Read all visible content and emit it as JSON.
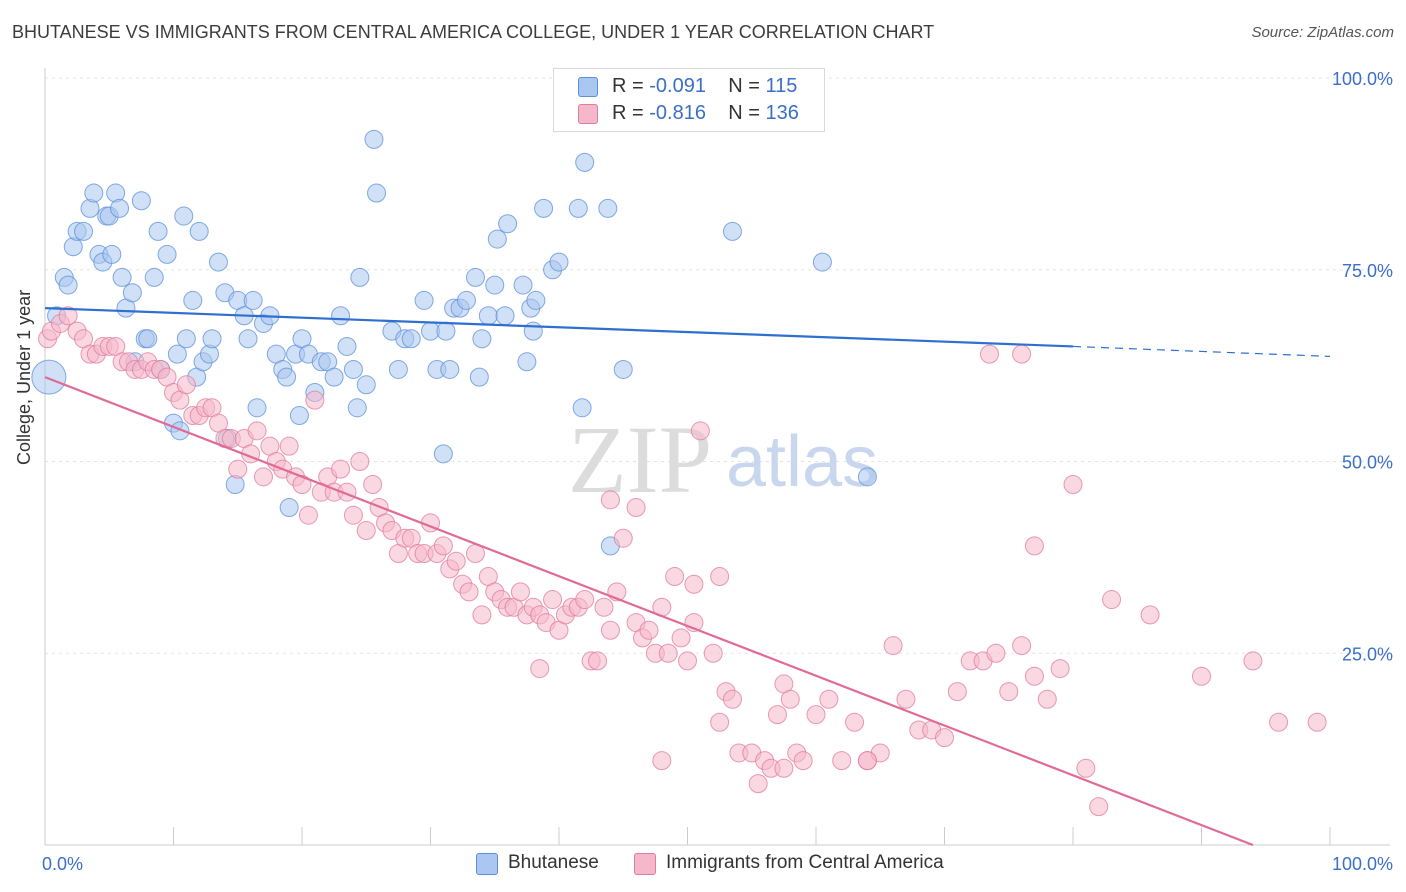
{
  "title": "BHUTANESE VS IMMIGRANTS FROM CENTRAL AMERICA COLLEGE, UNDER 1 YEAR CORRELATION CHART",
  "source": "Source: ZipAtlas.com",
  "watermark": "ZIPatlas",
  "legend": {
    "rows": [
      {
        "r_label": "R =",
        "r_value": "-0.091",
        "n_label": "N =",
        "n_value": "115",
        "color": "#a9c7f0"
      },
      {
        "r_label": "R =",
        "r_value": "-0.816",
        "n_label": "N =",
        "n_value": "136",
        "color": "#f5b8cb"
      }
    ]
  },
  "bottom_legend": [
    {
      "label": "Bhutanese",
      "color": "#a9c7f0"
    },
    {
      "label": "Immigrants from Central America",
      "color": "#f5b8cb"
    }
  ],
  "chart_data": {
    "type": "scatter",
    "title": "BHUTANESE VS IMMIGRANTS FROM CENTRAL AMERICA COLLEGE, UNDER 1 YEAR CORRELATION CHART",
    "xlabel": "",
    "ylabel": "College, Under 1 year",
    "xlim": [
      0,
      100
    ],
    "ylim": [
      0,
      100
    ],
    "x_tick_labels": [
      "0.0%",
      "100.0%"
    ],
    "y_tick_labels": [
      "25.0%",
      "50.0%",
      "75.0%",
      "100.0%"
    ],
    "y_ticks": [
      25,
      50,
      75,
      100
    ],
    "grid": true,
    "legend_position": "top-center",
    "series": [
      {
        "name": "Bhutanese",
        "color": "#5b8fd9",
        "fill": "#a9c7f0",
        "trend": {
          "x0": 0,
          "y0": 70.0,
          "x1": 80,
          "y1": 65.0,
          "dashed_to_x": 100,
          "dashed_to_y": 63.7
        },
        "points": [
          [
            0.3,
            61
          ],
          [
            0.9,
            69
          ],
          [
            1.5,
            74
          ],
          [
            1.8,
            73
          ],
          [
            2.2,
            78
          ],
          [
            2.5,
            80
          ],
          [
            3.0,
            80
          ],
          [
            3.5,
            83
          ],
          [
            3.8,
            85
          ],
          [
            4.2,
            77
          ],
          [
            4.5,
            76
          ],
          [
            4.8,
            82
          ],
          [
            5.0,
            82
          ],
          [
            5.2,
            77
          ],
          [
            5.5,
            85
          ],
          [
            5.8,
            83
          ],
          [
            6.0,
            74
          ],
          [
            6.3,
            70
          ],
          [
            6.8,
            72
          ],
          [
            7.0,
            63
          ],
          [
            7.5,
            84
          ],
          [
            7.8,
            66
          ],
          [
            8.0,
            66
          ],
          [
            8.5,
            74
          ],
          [
            8.8,
            80
          ],
          [
            9.0,
            62
          ],
          [
            9.5,
            77
          ],
          [
            10.0,
            55
          ],
          [
            10.3,
            64
          ],
          [
            10.5,
            54
          ],
          [
            10.8,
            82
          ],
          [
            11.0,
            66
          ],
          [
            11.5,
            71
          ],
          [
            11.8,
            61
          ],
          [
            12.0,
            80
          ],
          [
            12.3,
            63
          ],
          [
            12.8,
            64
          ],
          [
            13.0,
            66
          ],
          [
            13.5,
            76
          ],
          [
            14.0,
            72
          ],
          [
            14.2,
            53
          ],
          [
            14.8,
            47
          ],
          [
            15.0,
            71
          ],
          [
            15.5,
            69
          ],
          [
            15.8,
            66
          ],
          [
            16.2,
            71
          ],
          [
            16.5,
            57
          ],
          [
            17.0,
            68
          ],
          [
            17.5,
            69
          ],
          [
            18.0,
            64
          ],
          [
            18.5,
            62
          ],
          [
            18.8,
            61
          ],
          [
            19.0,
            44
          ],
          [
            19.5,
            64
          ],
          [
            19.8,
            56
          ],
          [
            20.0,
            66
          ],
          [
            20.5,
            64
          ],
          [
            21.0,
            59
          ],
          [
            21.5,
            63
          ],
          [
            22.0,
            63
          ],
          [
            22.5,
            61
          ],
          [
            23.0,
            69
          ],
          [
            23.5,
            65
          ],
          [
            24.0,
            62
          ],
          [
            24.3,
            57
          ],
          [
            24.5,
            74
          ],
          [
            25.0,
            60
          ],
          [
            25.8,
            85
          ],
          [
            25.6,
            92
          ],
          [
            27.0,
            67
          ],
          [
            27.5,
            62
          ],
          [
            28.0,
            66
          ],
          [
            28.5,
            66
          ],
          [
            29.5,
            71
          ],
          [
            30.0,
            67
          ],
          [
            30.5,
            62
          ],
          [
            31.2,
            67
          ],
          [
            31.5,
            62
          ],
          [
            31.8,
            70
          ],
          [
            32.3,
            70
          ],
          [
            32.8,
            71
          ],
          [
            33.5,
            74
          ],
          [
            33.8,
            61
          ],
          [
            34.0,
            66
          ],
          [
            34.5,
            69
          ],
          [
            35.2,
            79
          ],
          [
            35.0,
            73
          ],
          [
            35.8,
            69
          ],
          [
            36.0,
            81
          ],
          [
            37.2,
            73
          ],
          [
            37.5,
            63
          ],
          [
            37.8,
            70
          ],
          [
            38.0,
            67
          ],
          [
            38.2,
            71
          ],
          [
            38.8,
            83
          ],
          [
            39.5,
            75
          ],
          [
            40.0,
            76
          ],
          [
            41.5,
            83
          ],
          [
            41.8,
            57
          ],
          [
            42.0,
            89
          ],
          [
            43.8,
            83
          ],
          [
            44.0,
            39
          ],
          [
            45.0,
            62
          ],
          [
            53.5,
            80
          ],
          [
            60.5,
            76
          ],
          [
            64.0,
            48
          ],
          [
            31.0,
            51
          ]
        ]
      },
      {
        "name": "Immigrants from Central America",
        "color": "#e07a9e",
        "fill": "#f5b8cb",
        "trend": {
          "x0": 0,
          "y0": 61.0,
          "x1": 94,
          "y1": 0
        },
        "points": [
          [
            0.2,
            66
          ],
          [
            0.5,
            67
          ],
          [
            1.2,
            68
          ],
          [
            1.8,
            69
          ],
          [
            2.5,
            67
          ],
          [
            3.0,
            66
          ],
          [
            3.5,
            64
          ],
          [
            4.0,
            64
          ],
          [
            4.5,
            65
          ],
          [
            5.0,
            65
          ],
          [
            5.5,
            65
          ],
          [
            6.0,
            63
          ],
          [
            6.5,
            63
          ],
          [
            7.0,
            62
          ],
          [
            7.5,
            62
          ],
          [
            8.0,
            63
          ],
          [
            8.5,
            62
          ],
          [
            9.0,
            62
          ],
          [
            9.5,
            61
          ],
          [
            10.0,
            59
          ],
          [
            10.5,
            58
          ],
          [
            11.0,
            60
          ],
          [
            11.5,
            56
          ],
          [
            12.0,
            56
          ],
          [
            12.5,
            57
          ],
          [
            13.0,
            57
          ],
          [
            13.5,
            55
          ],
          [
            14.0,
            53
          ],
          [
            14.5,
            53
          ],
          [
            15.0,
            49
          ],
          [
            15.5,
            53
          ],
          [
            16.0,
            51
          ],
          [
            16.5,
            54
          ],
          [
            17.0,
            48
          ],
          [
            17.5,
            52
          ],
          [
            18.0,
            50
          ],
          [
            18.5,
            49
          ],
          [
            19.0,
            52
          ],
          [
            19.5,
            48
          ],
          [
            20.0,
            47
          ],
          [
            20.5,
            43
          ],
          [
            21.0,
            58
          ],
          [
            21.5,
            46
          ],
          [
            22.0,
            48
          ],
          [
            22.5,
            46
          ],
          [
            23.0,
            49
          ],
          [
            23.5,
            46
          ],
          [
            24.0,
            43
          ],
          [
            24.5,
            50
          ],
          [
            25.0,
            41
          ],
          [
            25.5,
            47
          ],
          [
            26.0,
            44
          ],
          [
            26.5,
            42
          ],
          [
            27.0,
            41
          ],
          [
            27.5,
            38
          ],
          [
            28.0,
            40
          ],
          [
            28.5,
            40
          ],
          [
            29.0,
            38
          ],
          [
            29.5,
            38
          ],
          [
            30.0,
            42
          ],
          [
            30.5,
            38
          ],
          [
            31.0,
            39
          ],
          [
            31.5,
            36
          ],
          [
            32.0,
            37
          ],
          [
            32.5,
            34
          ],
          [
            33.0,
            33
          ],
          [
            33.5,
            38
          ],
          [
            34.0,
            30
          ],
          [
            34.5,
            35
          ],
          [
            35.0,
            33
          ],
          [
            35.5,
            32
          ],
          [
            36.0,
            31
          ],
          [
            36.5,
            31
          ],
          [
            37.0,
            33
          ],
          [
            37.5,
            30
          ],
          [
            38.0,
            31
          ],
          [
            38.5,
            30
          ],
          [
            39.0,
            29
          ],
          [
            39.5,
            32
          ],
          [
            40.0,
            28
          ],
          [
            40.5,
            30
          ],
          [
            41.0,
            31
          ],
          [
            41.5,
            31
          ],
          [
            42.0,
            32
          ],
          [
            42.5,
            24
          ],
          [
            43.0,
            24
          ],
          [
            43.5,
            31
          ],
          [
            44.0,
            28
          ],
          [
            44.5,
            33
          ],
          [
            45.0,
            40
          ],
          [
            46.0,
            29
          ],
          [
            46.5,
            27
          ],
          [
            47.0,
            28
          ],
          [
            47.5,
            25
          ],
          [
            48.0,
            31
          ],
          [
            48.5,
            25
          ],
          [
            49.5,
            27
          ],
          [
            50.0,
            24
          ],
          [
            50.5,
            29
          ],
          [
            51.0,
            54
          ],
          [
            52.0,
            25
          ],
          [
            52.5,
            16
          ],
          [
            53.0,
            20
          ],
          [
            53.5,
            19
          ],
          [
            54.0,
            12
          ],
          [
            55.0,
            12
          ],
          [
            55.5,
            8
          ],
          [
            56.0,
            11
          ],
          [
            56.5,
            10
          ],
          [
            57.0,
            17
          ],
          [
            57.5,
            21
          ],
          [
            58.0,
            19
          ],
          [
            58.5,
            12
          ],
          [
            59.0,
            11
          ],
          [
            60.0,
            17
          ],
          [
            61.0,
            19
          ],
          [
            62.0,
            11
          ],
          [
            63.0,
            16
          ],
          [
            64.0,
            11
          ],
          [
            65.0,
            12
          ],
          [
            66.0,
            26
          ],
          [
            67.0,
            19
          ],
          [
            68.0,
            15
          ],
          [
            69.0,
            15
          ],
          [
            70.0,
            14
          ],
          [
            71.0,
            20
          ],
          [
            72.0,
            24
          ],
          [
            73.0,
            24
          ],
          [
            74.0,
            25
          ],
          [
            75.0,
            20
          ],
          [
            76.0,
            26
          ],
          [
            77.0,
            22
          ],
          [
            78.0,
            19
          ],
          [
            80.0,
            47
          ],
          [
            83.0,
            32
          ],
          [
            86.0,
            30
          ],
          [
            90.0,
            22
          ],
          [
            94.0,
            24
          ],
          [
            96.0,
            16
          ],
          [
            99.0,
            16
          ],
          [
            50.5,
            34
          ],
          [
            52.5,
            35
          ],
          [
            57.5,
            10
          ],
          [
            44.0,
            45
          ],
          [
            46.0,
            44
          ],
          [
            49.0,
            35
          ],
          [
            48.0,
            11
          ],
          [
            38.5,
            23
          ],
          [
            64.0,
            11
          ],
          [
            73.5,
            64
          ],
          [
            76.0,
            64
          ],
          [
            77.0,
            39
          ],
          [
            79.0,
            23
          ],
          [
            81.0,
            10
          ],
          [
            82.0,
            5
          ]
        ]
      }
    ]
  }
}
